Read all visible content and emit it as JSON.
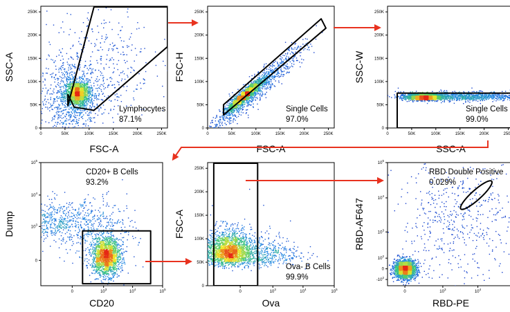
{
  "chart_data": [
    {
      "type": "scatter",
      "title": "",
      "xlabel": "FSC-A",
      "ylabel": "SSC-A",
      "xscale": "linear",
      "yscale": "linear",
      "xlim": [
        0,
        262144
      ],
      "ylim": [
        0,
        262144
      ],
      "x_ticks": [
        {
          "v": 0,
          "t": "0"
        },
        {
          "v": 50000,
          "t": "50K"
        },
        {
          "v": 100000,
          "t": "100K"
        },
        {
          "v": 150000,
          "t": "150K"
        },
        {
          "v": 200000,
          "t": "200K"
        },
        {
          "v": 250000,
          "t": "250K"
        }
      ],
      "y_ticks": [
        {
          "v": 0,
          "t": "0"
        },
        {
          "v": 50000,
          "t": "50K"
        },
        {
          "v": 100000,
          "t": "100K"
        },
        {
          "v": 150000,
          "t": "150K"
        },
        {
          "v": 200000,
          "t": "200K"
        },
        {
          "v": 250000,
          "t": "250K"
        }
      ],
      "gate": {
        "name": "Lymphocytes",
        "percent": "87.1%",
        "label_position": "bottom-right",
        "vertices": [
          [
            56000,
            48000
          ],
          [
            110000,
            262144
          ],
          [
            262144,
            262144
          ],
          [
            262144,
            175000
          ],
          [
            110000,
            38000
          ],
          [
            69000,
            45000
          ],
          [
            56000,
            72000
          ]
        ]
      },
      "populations": [
        {
          "x": 75000,
          "y": 75000,
          "sx": 13000,
          "sy": 14000,
          "w": 0.55
        },
        {
          "x": 60000,
          "y": 60000,
          "sx": 32000,
          "sy": 45000,
          "w": 0.3
        },
        {
          "x": 120000,
          "y": 140000,
          "sx": 55000,
          "sy": 60000,
          "w": 0.15
        }
      ]
    },
    {
      "type": "scatter",
      "title": "",
      "xlabel": "FSC-A",
      "ylabel": "FSC-H",
      "xscale": "linear",
      "yscale": "linear",
      "xlim": [
        0,
        262144
      ],
      "ylim": [
        0,
        262144
      ],
      "x_ticks": [
        {
          "v": 0,
          "t": "0"
        },
        {
          "v": 50000,
          "t": "50K"
        },
        {
          "v": 100000,
          "t": "100K"
        },
        {
          "v": 150000,
          "t": "150K"
        },
        {
          "v": 200000,
          "t": "200K"
        },
        {
          "v": 250000,
          "t": "250K"
        }
      ],
      "y_ticks": [
        {
          "v": 0,
          "t": "0"
        },
        {
          "v": 50000,
          "t": "50K"
        },
        {
          "v": 100000,
          "t": "100K"
        },
        {
          "v": 150000,
          "t": "150K"
        },
        {
          "v": 200000,
          "t": "200K"
        },
        {
          "v": 250000,
          "t": "250K"
        }
      ],
      "gate": {
        "name": "Single Cells",
        "percent": "97.0%",
        "label_position": "bottom-right",
        "vertices": [
          [
            33000,
            28000
          ],
          [
            33000,
            50000
          ],
          [
            235000,
            235000
          ],
          [
            245000,
            215000
          ]
        ]
      },
      "populations": [
        {
          "x": 75000,
          "y": 70000,
          "sx": 18000,
          "sy": 6000,
          "w": 0.6,
          "diag": true
        },
        {
          "x": 100000,
          "y": 85000,
          "sx": 50000,
          "sy": 14000,
          "w": 0.4,
          "diag": true
        }
      ]
    },
    {
      "type": "scatter",
      "title": "",
      "xlabel": "SSC-A",
      "ylabel": "SSC-W",
      "xscale": "linear",
      "yscale": "linear",
      "xlim": [
        0,
        262144
      ],
      "ylim": [
        0,
        262144
      ],
      "x_ticks": [
        {
          "v": 0,
          "t": "0"
        },
        {
          "v": 50000,
          "t": "50K"
        },
        {
          "v": 100000,
          "t": "100K"
        },
        {
          "v": 150000,
          "t": "150K"
        },
        {
          "v": 200000,
          "t": "200K"
        },
        {
          "v": 250000,
          "t": "250K"
        }
      ],
      "y_ticks": [
        {
          "v": 0,
          "t": "0"
        },
        {
          "v": 50000,
          "t": "50K"
        },
        {
          "v": 100000,
          "t": "100K"
        },
        {
          "v": 150000,
          "t": "150K"
        },
        {
          "v": 200000,
          "t": "200K"
        },
        {
          "v": 250000,
          "t": "250K"
        }
      ],
      "gate": {
        "name": "Single Cells",
        "percent": "99.0%",
        "label_position": "bottom-right",
        "vertices": [
          [
            20000,
            0
          ],
          [
            20000,
            75000
          ],
          [
            300000,
            75000
          ],
          [
            300000,
            0
          ]
        ]
      },
      "populations": [
        {
          "x": 75000,
          "y": 68000,
          "sx": 18000,
          "sy": 3500,
          "w": 0.55
        },
        {
          "x": 150000,
          "y": 69000,
          "sx": 65000,
          "sy": 5000,
          "w": 0.45
        }
      ]
    },
    {
      "type": "scatter",
      "title": "",
      "xlabel": "CD20",
      "ylabel": "Dump",
      "xscale": "biexponential",
      "yscale": "biexponential",
      "xlim": [
        -1000,
        100000
      ],
      "ylim": [
        -500,
        100000
      ],
      "x_ticks": [
        {
          "v": 0,
          "t": "0"
        },
        {
          "v": 1000,
          "t": "10",
          "sup": "3"
        },
        {
          "v": 10000,
          "t": "10",
          "sup": "4"
        },
        {
          "v": 100000,
          "t": "10",
          "sup": "5"
        }
      ],
      "y_ticks": [
        {
          "v": 0,
          "t": "0"
        },
        {
          "v": 1000,
          "t": "10",
          "sup": "3"
        },
        {
          "v": 10000,
          "t": "10",
          "sup": "4"
        },
        {
          "v": 100000,
          "t": "10",
          "sup": "5"
        }
      ],
      "gate": {
        "name": "CD20+ B Cells",
        "percent": "93.2%",
        "label_position": "top-right",
        "vertices": [
          [
            120,
            -420
          ],
          [
            120,
            700
          ],
          [
            40000,
            700
          ],
          [
            40000,
            -420
          ]
        ]
      },
      "populations": [
        {
          "x": 1200,
          "y": 30,
          "sx": 900,
          "sy": 120,
          "w": 0.65,
          "log": true
        },
        {
          "x": -200,
          "y": 1500,
          "sx": 250,
          "sy": 1800,
          "w": 0.2,
          "log": true
        },
        {
          "x": 800,
          "y": 600,
          "sx": 2500,
          "sy": 1500,
          "w": 0.15,
          "log": true
        }
      ]
    },
    {
      "type": "scatter",
      "title": "",
      "xlabel": "Ova",
      "ylabel": "FSC-A",
      "xscale": "biexponential",
      "yscale": "linear",
      "xlim": [
        -1000,
        100000
      ],
      "ylim": [
        0,
        262144
      ],
      "x_ticks": [
        {
          "v": 0,
          "t": "0"
        },
        {
          "v": 1000,
          "t": "10",
          "sup": "3"
        },
        {
          "v": 10000,
          "t": "10",
          "sup": "4"
        },
        {
          "v": 100000,
          "t": "10",
          "sup": "5"
        }
      ],
      "y_ticks": [
        {
          "v": 0,
          "t": "0"
        },
        {
          "v": 50000,
          "t": "50K"
        },
        {
          "v": 100000,
          "t": "100K"
        },
        {
          "v": 150000,
          "t": "150K"
        },
        {
          "v": 200000,
          "t": "200K"
        },
        {
          "v": 250000,
          "t": "250K"
        }
      ],
      "gate": {
        "name": "Ova- B Cells",
        "percent": "99.9%",
        "label_position": "bottom-right",
        "vertices": [
          [
            -600,
            0
          ],
          [
            -600,
            262144
          ],
          [
            260,
            262144
          ],
          [
            260,
            0
          ]
        ]
      },
      "populations": [
        {
          "x": -150,
          "y": 75000,
          "sx": 140,
          "sy": 20000,
          "w": 0.75,
          "log": true
        },
        {
          "x": 200,
          "y": 70000,
          "sx": 1200,
          "sy": 20000,
          "w": 0.25,
          "log": true
        }
      ]
    },
    {
      "type": "scatter",
      "title": "",
      "xlabel": "RBD-PE",
      "ylabel": "RBD-AF647",
      "xscale": "biexponential",
      "yscale": "biexponential",
      "xlim": [
        -200,
        100000
      ],
      "ylim": [
        -200,
        100000
      ],
      "x_ticks": [
        {
          "v": 0,
          "t": "0"
        },
        {
          "v": 1000,
          "t": "10",
          "sup": "3"
        },
        {
          "v": 10000,
          "t": "10",
          "sup": "4"
        },
        {
          "v": 100000,
          "t": "10",
          "sup": "5"
        }
      ],
      "y_ticks": [
        {
          "v": -100,
          "t": "-10",
          "sup": "2"
        },
        {
          "v": 0,
          "t": "0"
        },
        {
          "v": 100,
          "t": "10",
          "sup": "2"
        },
        {
          "v": 1000,
          "t": "10",
          "sup": "3"
        },
        {
          "v": 10000,
          "t": "10",
          "sup": "4"
        },
        {
          "v": 100000,
          "t": "10",
          "sup": "5"
        }
      ],
      "gate": {
        "name": "RBD Double Positive",
        "percent": "0.029%",
        "label_position": "top-right",
        "ellipse": {
          "cx": 9000,
          "cy": 12000,
          "note": "tilted ellipse along the diagonal"
        }
      },
      "populations": [
        {
          "x": 0,
          "y": 0,
          "sx": 40,
          "sy": 35,
          "w": 0.8,
          "log": true
        },
        {
          "x": 3000,
          "y": 2500,
          "sx": 20000,
          "sy": 15000,
          "w": 0.2,
          "log": true
        }
      ]
    }
  ]
}
